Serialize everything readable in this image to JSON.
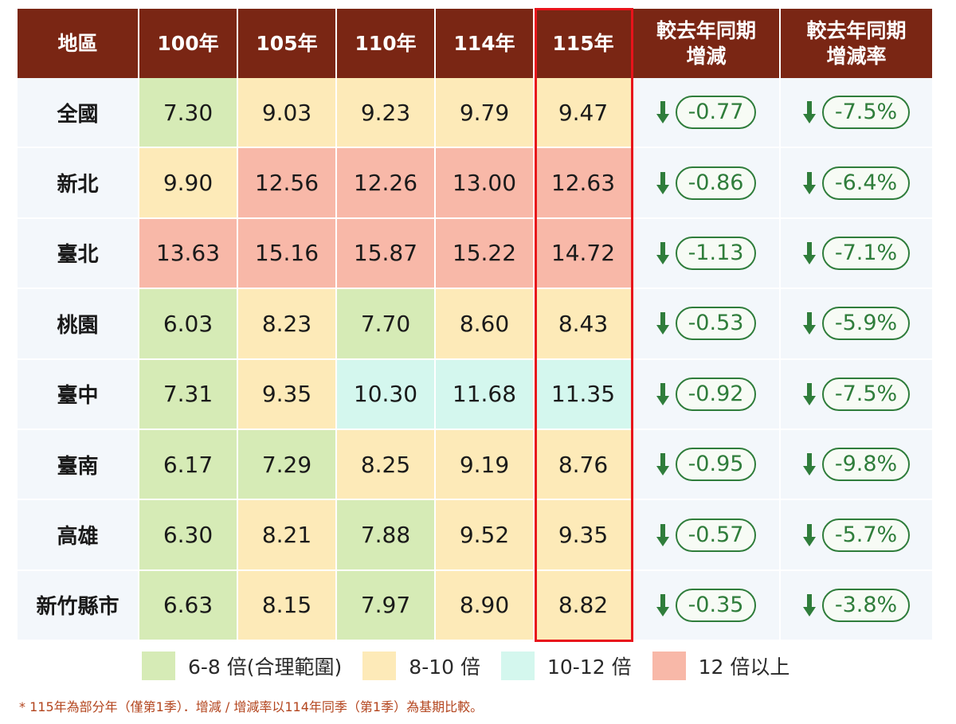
{
  "chart_data": {
    "type": "table",
    "columns": [
      "地區",
      "100年",
      "105年",
      "110年",
      "114年",
      "115年",
      "較去年同期\n增減",
      "較去年同期\n增減率"
    ],
    "highlight_column": "115年",
    "rows": [
      {
        "region": "全國",
        "values": [
          "7.30",
          "9.03",
          "9.23",
          "9.79",
          "9.47"
        ],
        "colors": [
          "g",
          "y",
          "y",
          "y",
          "y"
        ],
        "change": "-0.77",
        "rate": "-7.5%"
      },
      {
        "region": "新北",
        "values": [
          "9.90",
          "12.56",
          "12.26",
          "13.00",
          "12.63"
        ],
        "colors": [
          "y",
          "r",
          "r",
          "r",
          "r"
        ],
        "change": "-0.86",
        "rate": "-6.4%"
      },
      {
        "region": "臺北",
        "values": [
          "13.63",
          "15.16",
          "15.87",
          "15.22",
          "14.72"
        ],
        "colors": [
          "r",
          "r",
          "r",
          "r",
          "r"
        ],
        "change": "-1.13",
        "rate": "-7.1%"
      },
      {
        "region": "桃園",
        "values": [
          "6.03",
          "8.23",
          "7.70",
          "8.60",
          "8.43"
        ],
        "colors": [
          "g",
          "y",
          "g",
          "y",
          "y"
        ],
        "change": "-0.53",
        "rate": "-5.9%"
      },
      {
        "region": "臺中",
        "values": [
          "7.31",
          "9.35",
          "10.30",
          "11.68",
          "11.35"
        ],
        "colors": [
          "g",
          "y",
          "c",
          "c",
          "c"
        ],
        "change": "-0.92",
        "rate": "-7.5%"
      },
      {
        "region": "臺南",
        "values": [
          "6.17",
          "7.29",
          "8.25",
          "9.19",
          "8.76"
        ],
        "colors": [
          "g",
          "g",
          "y",
          "y",
          "y"
        ],
        "change": "-0.95",
        "rate": "-9.8%"
      },
      {
        "region": "高雄",
        "values": [
          "6.30",
          "8.21",
          "7.88",
          "9.52",
          "9.35"
        ],
        "colors": [
          "g",
          "y",
          "g",
          "y",
          "y"
        ],
        "change": "-0.57",
        "rate": "-5.7%"
      },
      {
        "region": "新竹縣市",
        "values": [
          "6.63",
          "8.15",
          "7.97",
          "8.90",
          "8.82"
        ],
        "colors": [
          "g",
          "y",
          "g",
          "y",
          "y"
        ],
        "change": "-0.35",
        "rate": "-3.8%"
      }
    ]
  },
  "legend": [
    {
      "label": "6-8 倍(合理範圍)",
      "color": "#d6ebb6"
    },
    {
      "label": "8-10 倍",
      "color": "#fdeab8"
    },
    {
      "label": "10-12 倍",
      "color": "#d4f7ee"
    },
    {
      "label": "12 倍以上",
      "color": "#f8b8a8"
    }
  ],
  "footnote": "* 115年為部分年（僅第1季）．增減 / 增減率以114年同季（第1季）為基期比較。",
  "colors": {
    "header": "#7a2614",
    "down_green": "#2f7d3b",
    "highlight": "#e8131b"
  },
  "icons": {
    "change_indicator": "arrow-down-icon"
  }
}
